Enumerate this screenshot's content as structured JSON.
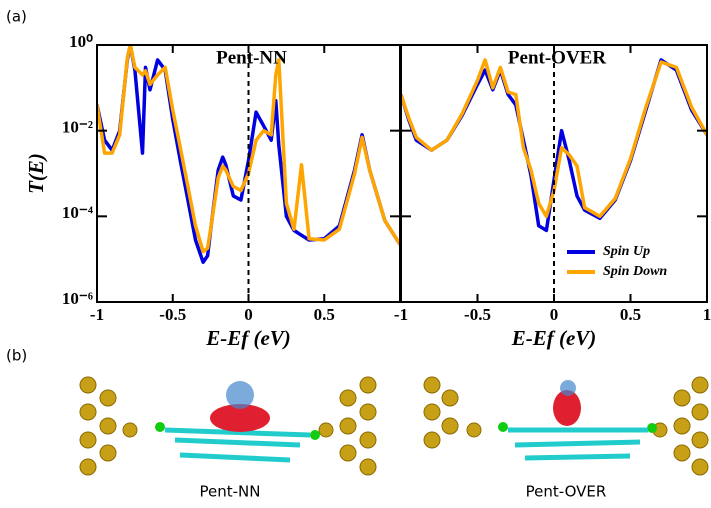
{
  "panel_labels": [
    "(a)",
    "(b)"
  ],
  "structures": [
    "Pent-NN",
    "Pent-OVER"
  ],
  "chart_data": [
    {
      "type": "line",
      "title": "Pent-NN",
      "xlabel": "E-Ef (eV)",
      "ylabel": "T(E)",
      "log_y": true,
      "reference_line_x": 0,
      "xlim": [
        -1,
        1
      ],
      "xticks": [
        -1,
        -0.5,
        0,
        0.5
      ],
      "ylim": [
        1e-06,
        1
      ],
      "yticks": [
        {
          "value": 1e-06,
          "label": "10⁻⁶"
        },
        {
          "value": 0.0001,
          "label": "10⁻⁴"
        },
        {
          "value": 0.01,
          "label": "10⁻²"
        },
        {
          "value": 1,
          "label": "10⁰"
        }
      ],
      "x": [
        -1,
        -0.95,
        -0.9,
        -0.85,
        -0.8,
        -0.78,
        -0.75,
        -0.7,
        -0.68,
        -0.65,
        -0.6,
        -0.55,
        -0.5,
        -0.45,
        -0.4,
        -0.35,
        -0.3,
        -0.27,
        -0.25,
        -0.2,
        -0.17,
        -0.15,
        -0.1,
        -0.05,
        0,
        0.05,
        0.1,
        0.15,
        0.18,
        0.2,
        0.25,
        0.3,
        0.35,
        0.4,
        0.5,
        0.6,
        0.7,
        0.75,
        0.8,
        0.9,
        1
      ],
      "series": [
        {
          "name": "Spin Up",
          "color": "#0000e0",
          "values": [
            0.04,
            0.006,
            0.0035,
            0.01,
            0.45,
            1,
            0.26,
            0.003,
            0.3,
            0.09,
            0.45,
            0.26,
            0.018,
            0.002,
            0.00024,
            2.8e-05,
            8.5e-06,
            1.2e-05,
            4.7e-05,
            0.0012,
            0.0024,
            0.0016,
            0.0003,
            0.00024,
            0.002,
            0.027,
            0.013,
            0.006,
            0.05,
            0.0046,
            0.0001,
            4.7e-05,
            3.6e-05,
            2.8e-05,
            3e-05,
            6e-05,
            0.0012,
            0.008,
            0.0012,
            8e-05,
            2.2e-05
          ]
        },
        {
          "name": "Spin Down",
          "color": "#ffa500",
          "values": [
            0.04,
            0.003,
            0.003,
            0.008,
            0.5,
            1,
            0.3,
            0.2,
            0.25,
            0.12,
            0.2,
            0.3,
            0.03,
            0.004,
            0.0005,
            6e-05,
            1.5e-05,
            1.8e-05,
            5e-05,
            0.0008,
            0.0015,
            0.0012,
            0.0005,
            0.0004,
            0.001,
            0.006,
            0.01,
            0.008,
            0.2,
            0.45,
            0.0002,
            5e-05,
            0.0016,
            3e-05,
            2.8e-05,
            5e-05,
            0.001,
            0.007,
            0.0012,
            8e-05,
            2.2e-05
          ]
        }
      ]
    },
    {
      "type": "line",
      "title": "Pent-OVER",
      "xlabel": "E-Ef (eV)",
      "log_y": true,
      "reference_line_x": 0,
      "legend": "lower right",
      "xlim": [
        -1,
        1
      ],
      "xticks": [
        -1,
        -0.5,
        0,
        0.5,
        1
      ],
      "ylim": [
        1e-06,
        1
      ],
      "yticks": [
        1e-06,
        0.0001,
        0.01,
        1
      ],
      "x": [
        -1,
        -0.95,
        -0.9,
        -0.8,
        -0.7,
        -0.6,
        -0.5,
        -0.45,
        -0.4,
        -0.35,
        -0.3,
        -0.25,
        -0.2,
        -0.15,
        -0.1,
        -0.05,
        0,
        0.05,
        0.1,
        0.15,
        0.2,
        0.3,
        0.4,
        0.5,
        0.6,
        0.7,
        0.8,
        0.9,
        1
      ],
      "series": [
        {
          "name": "Spin Up",
          "color": "#0000e0",
          "values": [
            0.07,
            0.018,
            0.006,
            0.0035,
            0.006,
            0.023,
            0.12,
            0.26,
            0.09,
            0.26,
            0.07,
            0.04,
            0.006,
            0.0009,
            6e-05,
            4.7e-05,
            0.0007,
            0.01,
            0.002,
            0.0003,
            0.00014,
            9e-05,
            0.00024,
            0.002,
            0.03,
            0.45,
            0.26,
            0.03,
            0.008
          ]
        },
        {
          "name": "Spin Down",
          "color": "#ffa500",
          "values": [
            0.07,
            0.02,
            0.007,
            0.0035,
            0.006,
            0.025,
            0.15,
            0.45,
            0.1,
            0.3,
            0.08,
            0.07,
            0.004,
            0.0012,
            0.0002,
            0.0001,
            0.0004,
            0.004,
            0.0027,
            0.0015,
            0.00016,
            0.0001,
            0.00026,
            0.0022,
            0.035,
            0.4,
            0.3,
            0.035,
            0.008
          ]
        }
      ]
    }
  ]
}
